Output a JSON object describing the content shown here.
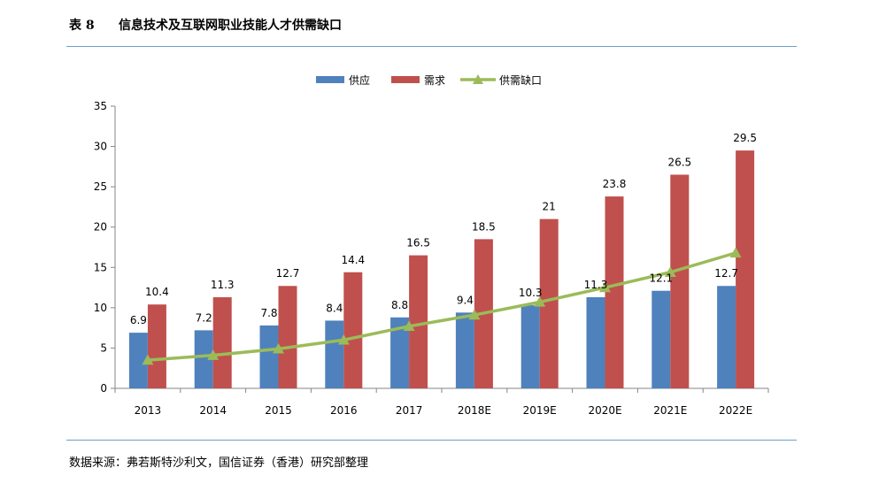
{
  "header": {
    "table_label": "表 8",
    "title": "信息技术及互联网职业技能人才供需缺口"
  },
  "footer": {
    "source": "数据来源：弗若斯特沙利文，国信证券（香港）研究部整理"
  },
  "colors": {
    "supply": "#4f81bd",
    "demand": "#c0504d",
    "gap": "#9bbb59",
    "rule": "#6f9fc8"
  },
  "chart_data": {
    "type": "bar",
    "categories": [
      "2013",
      "2014",
      "2015",
      "2016",
      "2017",
      "2018E",
      "2019E",
      "2020E",
      "2021E",
      "2022E"
    ],
    "series": [
      {
        "name": "供应",
        "type": "bar",
        "values": [
          6.9,
          7.2,
          7.8,
          8.4,
          8.8,
          9.4,
          10.3,
          11.3,
          12.1,
          12.7
        ]
      },
      {
        "name": "需求",
        "type": "bar",
        "values": [
          10.4,
          11.3,
          12.7,
          14.4,
          16.5,
          18.5,
          21,
          23.8,
          26.5,
          29.5
        ]
      },
      {
        "name": "供需缺口",
        "type": "line",
        "values": [
          3.5,
          4.1,
          4.9,
          6.0,
          7.7,
          9.1,
          10.7,
          12.5,
          14.4,
          16.8
        ]
      }
    ],
    "y_ticks": [
      "0",
      "5",
      "10",
      "15",
      "20",
      "25",
      "30",
      "35"
    ],
    "ylim": [
      0,
      35
    ],
    "legend_position": "top-center",
    "grid": false
  }
}
